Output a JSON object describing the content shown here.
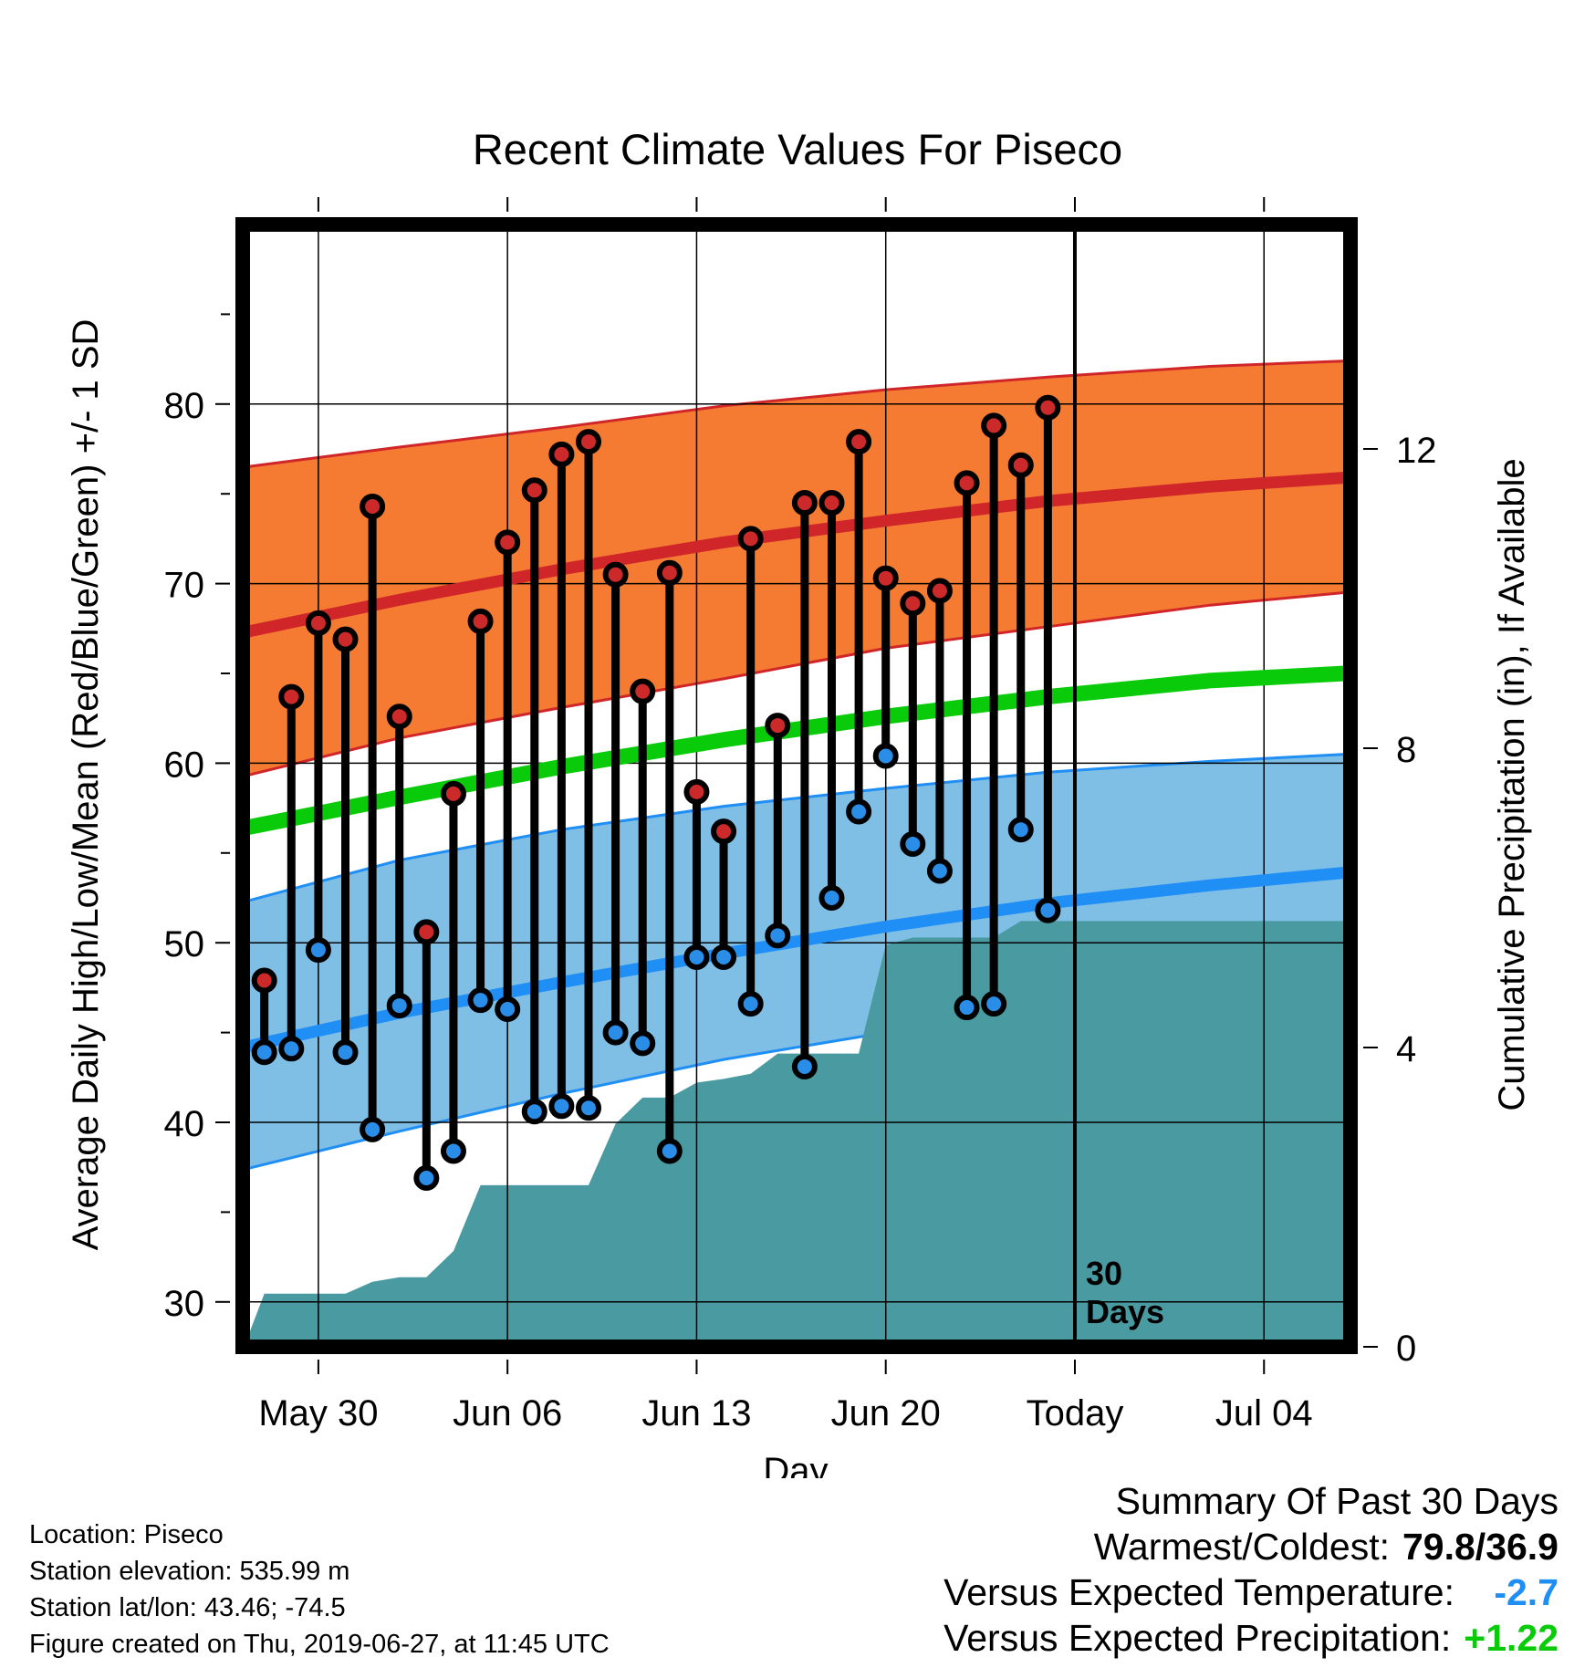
{
  "chart_data": {
    "type": "line",
    "title": "Recent Climate Values For Piseco",
    "xlabel": "Day",
    "ylabel": "Average Daily High/Low/Mean (Red/Blue/Green) +/- 1 SD",
    "y2label": "Cumulative Precipitation (in), If Available",
    "x_tick_labels": [
      "May 30",
      "Jun 06",
      "Jun 13",
      "Jun 20",
      "Today",
      "Jul 04"
    ],
    "x_tick_days": [
      0,
      7,
      14,
      21,
      28,
      35
    ],
    "x_range": [
      -2.8,
      38.2
    ],
    "ylim": [
      27.5,
      90
    ],
    "y_ticks": [
      30,
      40,
      50,
      60,
      70,
      80
    ],
    "y2lim": [
      0,
      15
    ],
    "y2_ticks": [
      0,
      4,
      8,
      12
    ],
    "today_label": "30\nDays",
    "observed": {
      "days": [
        -2,
        -1,
        0,
        1,
        2,
        3,
        4,
        5,
        6,
        7,
        8,
        9,
        10,
        11,
        12,
        13,
        14,
        15,
        16,
        17,
        18,
        19,
        20,
        21,
        22,
        23,
        24,
        25,
        26,
        27
      ],
      "high": [
        47.9,
        63.7,
        67.8,
        66.9,
        74.3,
        62.6,
        50.6,
        58.3,
        67.9,
        72.3,
        75.2,
        77.2,
        77.9,
        70.5,
        64.0,
        70.6,
        58.4,
        56.2,
        72.5,
        62.1,
        74.5,
        74.5,
        77.9,
        70.3,
        68.9,
        69.6,
        75.6,
        78.8,
        76.6,
        79.8
      ],
      "low": [
        43.9,
        44.1,
        49.6,
        43.9,
        39.6,
        46.5,
        36.9,
        38.4,
        46.8,
        46.3,
        40.6,
        40.9,
        40.8,
        45.0,
        44.4,
        38.4,
        49.2,
        49.2,
        46.6,
        50.4,
        43.1,
        52.5,
        57.3,
        60.4,
        55.5,
        54.0,
        46.4,
        46.6,
        56.3,
        51.8
      ]
    },
    "normals": {
      "days": [
        -2.7,
        3,
        9,
        15,
        21,
        27,
        33,
        38
      ],
      "high_mean": [
        67.3,
        69.1,
        70.8,
        72.3,
        73.5,
        74.6,
        75.4,
        75.9
      ],
      "high_upper": [
        76.5,
        77.6,
        78.7,
        79.9,
        80.8,
        81.5,
        82.1,
        82.4
      ],
      "high_lower": [
        59.3,
        61.4,
        63.1,
        64.7,
        66.4,
        67.6,
        68.8,
        69.5
      ],
      "mean": [
        56.4,
        58.1,
        59.8,
        61.3,
        62.6,
        63.7,
        64.6,
        65.0
      ],
      "low_mean": [
        44.2,
        46.1,
        47.8,
        49.4,
        50.9,
        52.2,
        53.2,
        53.9
      ],
      "low_upper": [
        52.3,
        54.6,
        56.3,
        57.6,
        58.6,
        59.5,
        60.1,
        60.5
      ],
      "low_lower": [
        37.4,
        39.5,
        41.6,
        43.5,
        45.0,
        46.3,
        47.1,
        47.7
      ]
    },
    "precip": {
      "days": [
        -2.7,
        -2,
        -1,
        0,
        1,
        2,
        3,
        4,
        5,
        6,
        7,
        8,
        9,
        10,
        11,
        12,
        13,
        14,
        15,
        16,
        17,
        18,
        19,
        20,
        21,
        22,
        23,
        24,
        25,
        26,
        27,
        28,
        38
      ],
      "cumulative": [
        0.05,
        0.71,
        0.71,
        0.71,
        0.71,
        0.87,
        0.93,
        0.93,
        1.28,
        2.16,
        2.16,
        2.16,
        2.16,
        2.16,
        2.98,
        3.33,
        3.33,
        3.53,
        3.58,
        3.65,
        3.92,
        3.92,
        3.92,
        3.92,
        5.37,
        5.47,
        5.47,
        5.47,
        5.47,
        5.69,
        5.69,
        5.69,
        5.69
      ]
    }
  },
  "colors": {
    "high_band": "#f47b31",
    "high_line": "#d0262a",
    "low_band": "#7fbfe6",
    "low_line": "#1f8ef5",
    "mean_line": "#0acb0a",
    "precip": "#4a9aa2",
    "high_dot": "#cc2a2a",
    "low_dot": "#2a8ee8"
  },
  "info": {
    "location": "Location: Piseco",
    "elevation": "Station elevation: 535.99 m",
    "latlon": "Station lat/lon: 43.46; -74.5",
    "created": "Figure created on Thu, 2019-06-27, at 11:45 UTC"
  },
  "summary": {
    "title": "Summary Of Past 30 Days",
    "warmest_label": "Warmest/Coldest:",
    "warmest_value": "79.8/36.9",
    "temp_label": "Versus Expected Temperature:",
    "temp_value": "-2.7",
    "temp_color": "#1f8ef5",
    "precip_label": "Versus Expected Precipitation:",
    "precip_value": "+1.22",
    "precip_color": "#0acb0a"
  }
}
